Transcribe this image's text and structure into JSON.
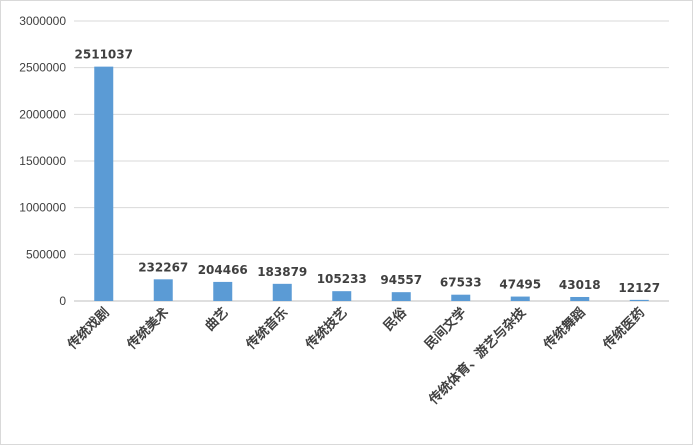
{
  "chart_data": {
    "type": "bar",
    "title": "",
    "xlabel": "",
    "ylabel": "",
    "ylim": [
      0,
      3000000
    ],
    "y_ticks": [
      "0",
      "500000",
      "1000000",
      "1500000",
      "2000000",
      "2500000",
      "3000000"
    ],
    "y_tick_values": [
      0,
      500000,
      1000000,
      1500000,
      2000000,
      2500000,
      3000000
    ],
    "grid": true,
    "legend": "none",
    "bar_color": "#5b9bd5",
    "categories": [
      "传统戏剧",
      "传统美术",
      "曲艺",
      "传统音乐",
      "传统技艺",
      "民俗",
      "民间文学",
      "传统体育、游艺与杂技",
      "传统舞蹈",
      "传统医药"
    ],
    "values": [
      2511037,
      232267,
      204466,
      183879,
      105233,
      94557,
      67533,
      47495,
      43018,
      12127
    ],
    "data_labels": [
      "2511037",
      "232267",
      "204466",
      "183879",
      "105233",
      "94557",
      "67533",
      "47495",
      "43018",
      "12127"
    ]
  }
}
